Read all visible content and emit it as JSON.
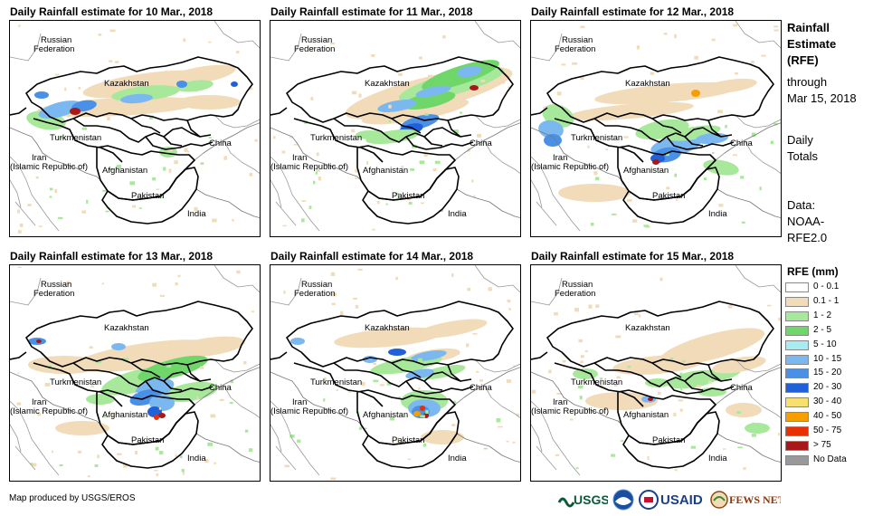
{
  "panels": [
    {
      "title": "Daily Rainfall estimate for 10 Mar., 2018"
    },
    {
      "title": "Daily Rainfall estimate for 11 Mar., 2018"
    },
    {
      "title": "Daily Rainfall estimate for 12 Mar., 2018"
    },
    {
      "title": "Daily Rainfall estimate for 13 Mar., 2018"
    },
    {
      "title": "Daily Rainfall estimate for 14 Mar., 2018"
    },
    {
      "title": "Daily Rainfall estimate for 15 Mar., 2018"
    }
  ],
  "map_labels": {
    "russia_line1": "Russian",
    "russia_line2": "Federation",
    "kazakhstan": "Kazakhstan",
    "turkmenistan": "Turkmenistan",
    "iran_line1": "Iran",
    "iran_line2": "(Islamic Republic of)",
    "afghanistan": "Afghanistan",
    "pakistan": "Pakistan",
    "china": "China",
    "india": "India"
  },
  "side": {
    "line1": "Rainfall",
    "line2": "Estimate",
    "line3": "(RFE)",
    "through": "through",
    "date": "Mar 15, 2018",
    "daily": "Daily",
    "totals": "Totals",
    "data_label": "Data:",
    "source1": "NOAA-",
    "source2": "RFE2.0"
  },
  "legend": {
    "title": "RFE (mm)",
    "items": [
      {
        "label": "0 - 0.1",
        "color": "#ffffff"
      },
      {
        "label": "0.1 - 1",
        "color": "#f1dbb9"
      },
      {
        "label": "1 - 2",
        "color": "#a8e89a"
      },
      {
        "label": "2 - 5",
        "color": "#6fd66a"
      },
      {
        "label": "5 - 10",
        "color": "#a8ecf2"
      },
      {
        "label": "10 - 15",
        "color": "#7cb8f0"
      },
      {
        "label": "15 - 20",
        "color": "#4a90e6"
      },
      {
        "label": "20 - 30",
        "color": "#2060d8"
      },
      {
        "label": "30 - 40",
        "color": "#f8e070"
      },
      {
        "label": "40 - 50",
        "color": "#f5a000"
      },
      {
        "label": "50 - 75",
        "color": "#e83000"
      },
      {
        "label": "> 75",
        "color": "#a81818"
      },
      {
        "label": "No Data",
        "color": "#999999"
      }
    ]
  },
  "credit": "Map produced by USGS/EROS",
  "logos": {
    "usgs": "USGS",
    "usaid": "USAID",
    "fewsnet": "FEWS NET"
  }
}
